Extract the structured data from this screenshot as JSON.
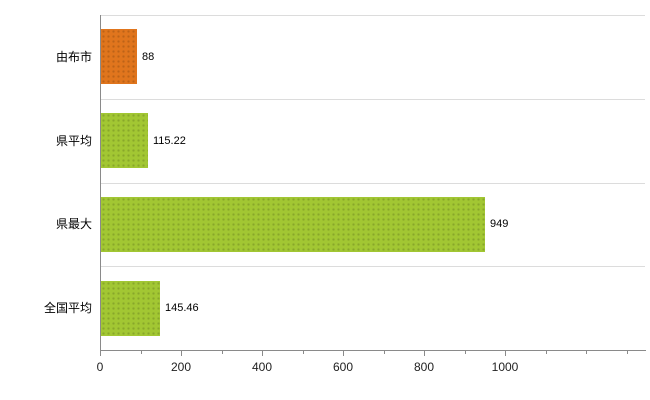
{
  "chart_data": {
    "type": "bar",
    "orientation": "horizontal",
    "title": "",
    "categories": [
      "由布市",
      "県平均",
      "県最大",
      "全国平均"
    ],
    "values": [
      88,
      115.22,
      949,
      145.46
    ],
    "value_labels": [
      "88",
      "115.22",
      "949",
      "145.46"
    ],
    "bar_colors": [
      "#e0751d",
      "#a2c733",
      "#a2c733",
      "#a2c733"
    ],
    "x_ticks": [
      0,
      200,
      400,
      600,
      800,
      1000
    ],
    "x_minor_tick_step": 100,
    "xlim": [
      0,
      1345
    ],
    "grid": "horizontal category separators, light gray",
    "legend": "none",
    "axis_color": "#8a8a8a",
    "gridline_color": "#dcdcdc",
    "background_color": "#ffffff"
  }
}
